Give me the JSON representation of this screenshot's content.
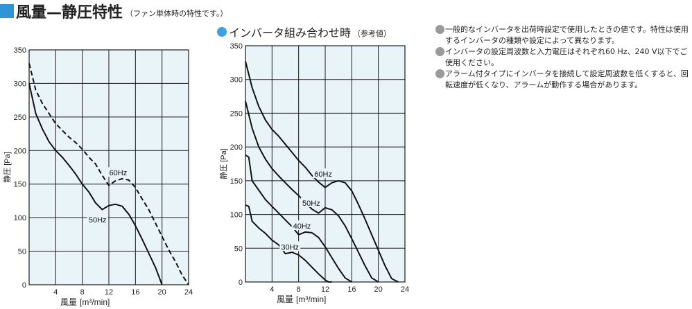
{
  "header": {
    "title": "風量—静圧特性",
    "note": "（ファン単体時の特性です。）"
  },
  "subheader": {
    "title": "インバータ組み合わせ時",
    "note": "（参考値）"
  },
  "notes": [
    "一般的なインバータを出荷時設定で使用したときの値です。特性は使用するインバータの種類や設定によって異なります。",
    "インバータの設定周波数と入力電圧はそれぞれ60 Hz、240 V以下でご使用ください。",
    "アラーム付タイプにインバータを接続して設定周波数を低くすると、回転速度が低くなり、アラームが動作する場合があります。"
  ],
  "colors": {
    "plot_bg": "#e8f4f8",
    "grid": "#1a1a1a",
    "curve": "#111111",
    "accent_square": "#2f95d7",
    "accent_dot": "#3da0e0",
    "bullet": "#9a9a9a"
  },
  "chart_data": [
    {
      "type": "line",
      "title": "",
      "xlabel": "風量",
      "xunit": "[m³/min]",
      "ylabel": "静圧 [Pa]",
      "xlim": [
        0,
        24
      ],
      "ylim": [
        0,
        350
      ],
      "xticks": [
        "4",
        "8",
        "12",
        "16",
        "20",
        "24"
      ],
      "yticks": [
        "0",
        "50",
        "100",
        "150",
        "200",
        "250",
        "300",
        "350"
      ],
      "grid": true,
      "series": [
        {
          "name": "60Hz",
          "style": "dashed",
          "label_at": [
            13.4,
            167
          ],
          "x": [
            0,
            1,
            2,
            3,
            4,
            5,
            6,
            7,
            8,
            9,
            10,
            11,
            12,
            13,
            14,
            15,
            16,
            17,
            18,
            19,
            20,
            21,
            22,
            23,
            24
          ],
          "y": [
            330,
            290,
            270,
            255,
            240,
            230,
            220,
            212,
            202,
            190,
            180,
            163,
            148,
            155,
            158,
            156,
            145,
            128,
            112,
            92,
            72,
            52,
            35,
            15,
            0
          ]
        },
        {
          "name": "50Hz",
          "style": "solid",
          "label_at": [
            10.3,
            97
          ],
          "x": [
            0,
            1,
            2,
            3,
            4,
            5,
            6,
            7,
            8,
            9,
            10,
            11,
            12,
            13,
            14,
            15,
            16,
            17,
            18,
            19,
            20
          ],
          "y": [
            300,
            255,
            232,
            213,
            200,
            190,
            178,
            165,
            150,
            138,
            122,
            112,
            118,
            120,
            117,
            105,
            88,
            68,
            47,
            26,
            0
          ]
        }
      ]
    },
    {
      "type": "line",
      "title": "",
      "xlabel": "風量",
      "xunit": "[m³/min]",
      "ylabel": "静圧 [Pa]",
      "xlim": [
        0,
        24
      ],
      "ylim": [
        0,
        350
      ],
      "xticks": [
        "4",
        "8",
        "12",
        "16",
        "20",
        "24"
      ],
      "yticks": [
        "0",
        "50",
        "100",
        "150",
        "200",
        "250",
        "300",
        "350"
      ],
      "grid": true,
      "series": [
        {
          "name": "60Hz",
          "style": "solid",
          "label_at": [
            11.7,
            160
          ],
          "x": [
            0,
            1,
            2,
            3,
            4,
            5,
            6,
            7,
            8,
            9,
            10,
            11,
            12,
            13,
            14,
            15,
            16,
            17,
            18,
            19,
            20,
            21,
            22,
            23
          ],
          "y": [
            327,
            288,
            260,
            240,
            226,
            216,
            204,
            192,
            180,
            170,
            158,
            148,
            140,
            147,
            150,
            147,
            135,
            115,
            93,
            70,
            47,
            24,
            5,
            0
          ]
        },
        {
          "name": "50Hz",
          "style": "solid",
          "label_at": [
            9.9,
            117
          ],
          "x": [
            0,
            1,
            2,
            3,
            4,
            5,
            6,
            7,
            8,
            9,
            10,
            11,
            12,
            13,
            14,
            15,
            16,
            17,
            18,
            19,
            20
          ],
          "y": [
            268,
            228,
            200,
            182,
            168,
            157,
            147,
            137,
            128,
            118,
            108,
            102,
            110,
            107,
            98,
            83,
            64,
            44,
            24,
            6,
            0
          ]
        },
        {
          "name": "40Hz",
          "style": "solid",
          "label_at": [
            8.5,
            83
          ],
          "x": [
            0,
            0.5,
            1,
            2,
            3,
            4,
            5,
            6,
            7,
            8,
            9,
            10,
            11,
            12,
            13,
            14,
            15,
            16
          ],
          "y": [
            188,
            185,
            150,
            136,
            122,
            112,
            102,
            92,
            82,
            70,
            74,
            73,
            66,
            52,
            36,
            20,
            6,
            0
          ]
        },
        {
          "name": "30Hz",
          "style": "solid",
          "label_at": [
            6.7,
            52
          ],
          "x": [
            0,
            0.5,
            1,
            2,
            3,
            4,
            5,
            6,
            7,
            8,
            9,
            10,
            11,
            12,
            12.5,
            13
          ],
          "y": [
            114,
            112,
            90,
            80,
            72,
            62,
            55,
            42,
            44,
            40,
            32,
            22,
            12,
            3,
            0,
            0
          ]
        }
      ]
    }
  ]
}
